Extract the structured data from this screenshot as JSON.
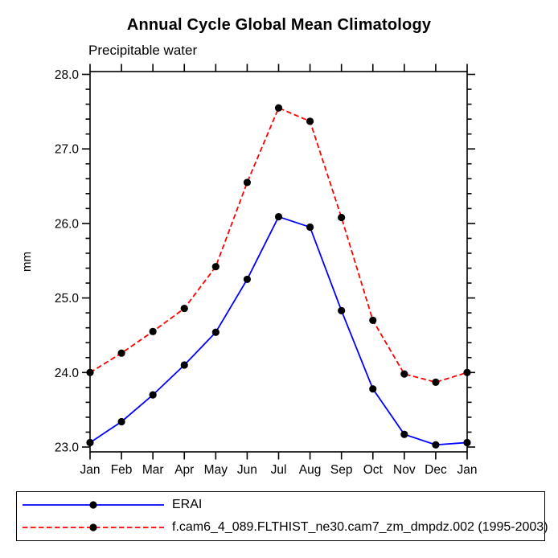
{
  "chart_data": {
    "type": "line",
    "title": "Annual Cycle Global Mean Climatology",
    "subtitle": "Precipitable water",
    "ylabel": "mm",
    "xlabel": "",
    "categories": [
      "Jan",
      "Feb",
      "Mar",
      "Apr",
      "May",
      "Jun",
      "Jul",
      "Aug",
      "Sep",
      "Oct",
      "Nov",
      "Dec",
      "Jan"
    ],
    "ylim": [
      23.0,
      28.0
    ],
    "ytick_step": 1.0,
    "ytick_minor": 0.2,
    "ytick_labels": [
      "23.0",
      "24.0",
      "25.0",
      "26.0",
      "27.0",
      "28.0"
    ],
    "grid": false,
    "legend_position": "bottom",
    "axis_color": "#000000",
    "marker_color": "#000000",
    "series": [
      {
        "name": "ERAI",
        "color": "#0000ff",
        "style": "solid",
        "marker": "filled-circle",
        "values": [
          23.06,
          23.34,
          23.7,
          24.1,
          24.54,
          25.25,
          26.09,
          25.95,
          24.83,
          23.78,
          23.17,
          23.03,
          23.06
        ]
      },
      {
        "name": "f.cam6_4_089.FLTHIST_ne30.cam7_zm_dmpdz.002 (1995-2003)",
        "color": "#ff0000",
        "style": "dashed",
        "marker": "filled-circle",
        "values": [
          24.0,
          24.26,
          24.55,
          24.86,
          25.42,
          26.55,
          27.55,
          27.37,
          26.08,
          24.7,
          23.98,
          23.87,
          24.0
        ]
      }
    ]
  }
}
